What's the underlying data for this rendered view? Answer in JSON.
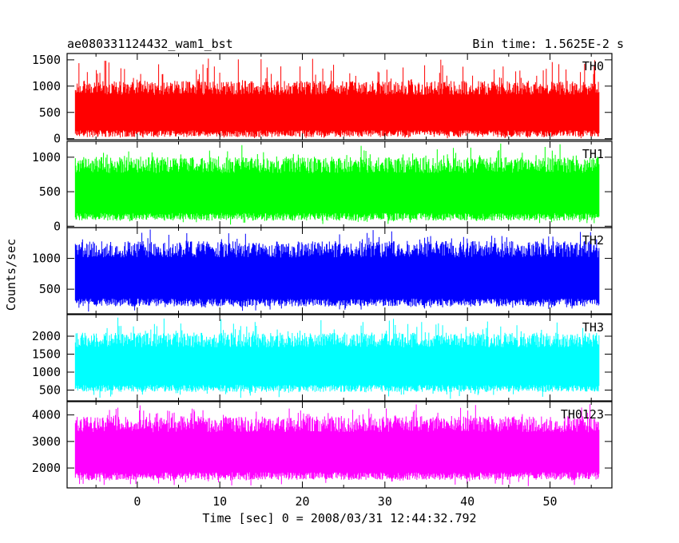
{
  "header": {
    "title": "ae080331124432_wam1_bst",
    "bin_time": "Bin time: 1.5625E-2 s"
  },
  "chart_data": {
    "type": "line",
    "ylabel": "Counts/sec",
    "xlabel": "Time [sec] 0 = 2008/03/31 12:44:32.792",
    "xlim": [
      -8.5,
      57.5
    ],
    "x_data_range": [
      -7.5,
      56.0
    ],
    "x_ticks": [
      0,
      10,
      20,
      30,
      40,
      50
    ],
    "grid": false,
    "panels": [
      {
        "name": "TH0",
        "color": "#ff0000",
        "ylim": [
          -20,
          1620
        ],
        "y_ticks": [
          0,
          500,
          1000,
          1500
        ],
        "band_low": 30,
        "band_high": 1100,
        "max_spike": 1600,
        "min_dip": 5
      },
      {
        "name": "TH1",
        "color": "#00ff00",
        "ylim": [
          -20,
          1230
        ],
        "y_ticks": [
          0,
          500,
          1000
        ],
        "band_low": 80,
        "band_high": 1000,
        "max_spike": 1220,
        "min_dip": 20
      },
      {
        "name": "TH2",
        "color": "#0000ff",
        "ylim": [
          100,
          1500
        ],
        "y_ticks": [
          500,
          1000
        ],
        "band_low": 220,
        "band_high": 1280,
        "max_spike": 1490,
        "min_dip": 130
      },
      {
        "name": "TH3",
        "color": "#00ffff",
        "ylim": [
          200,
          2600
        ],
        "y_ticks": [
          500,
          1000,
          1500,
          2000
        ],
        "band_low": 450,
        "band_high": 2100,
        "max_spike": 2550,
        "min_dip": 250
      },
      {
        "name": "TH0123",
        "color": "#ff00ff",
        "ylim": [
          1250,
          4500
        ],
        "y_ticks": [
          2000,
          3000,
          4000
        ],
        "band_low": 1550,
        "band_high": 3950,
        "max_spike": 4450,
        "min_dip": 1300
      }
    ]
  }
}
